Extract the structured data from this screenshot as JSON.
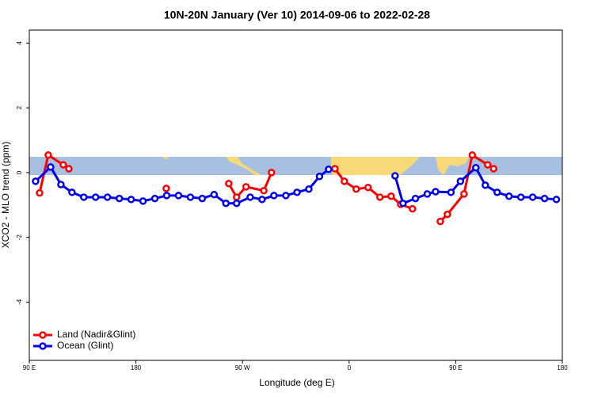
{
  "chart_data": {
    "type": "line",
    "title": "10N-20N January (Ver 10)   2014-09-06 to 2022-02-28",
    "xlabel": "Longitude (deg E)",
    "ylabel": "XCO2 - MLO trend (ppm)",
    "xlim": [
      90,
      540
    ],
    "ylim": [
      -5.8,
      4.4
    ],
    "xticks": [
      {
        "value": 90,
        "label": "90 E"
      },
      180,
      {
        "value": 270,
        "label": "90 W"
      },
      {
        "value": 360,
        "label": "0"
      },
      {
        "value": 450,
        "label": "90 E"
      },
      180
    ],
    "yticks": [
      -4,
      -2,
      0,
      2,
      4
    ],
    "legend": "bottom-left",
    "series": [
      {
        "name": "Land (Nadir&Glint)",
        "color": "#ff0000",
        "x": [
          98.7,
          106,
          118.7,
          123.4,
          null,
          205.6,
          null,
          258.4,
          265,
          273,
          288,
          294.5,
          null,
          348,
          356,
          366,
          376,
          386,
          395.5,
          403.5,
          413.5,
          null,
          437,
          443,
          457,
          464,
          477,
          482
        ],
        "values": [
          -0.63,
          0.54,
          0.24,
          0.12,
          null,
          -0.49,
          null,
          -0.34,
          -0.76,
          -0.44,
          -0.56,
          0.0,
          null,
          0.12,
          -0.27,
          -0.51,
          -0.46,
          -0.76,
          -0.73,
          -0.98,
          -1.12,
          null,
          -1.51,
          -1.29,
          -0.66,
          0.54,
          0.24,
          0.12
        ]
      },
      {
        "name": "Ocean (Glint)",
        "color": "#0000ee",
        "x": [
          95.3,
          108,
          116.7,
          126,
          136,
          146,
          156,
          166,
          176,
          186,
          196,
          206,
          216,
          226,
          236,
          246,
          256,
          265,
          276.5,
          286.5,
          296.5,
          306.6,
          316,
          326,
          335,
          342.7,
          null,
          398.8,
          405.5,
          416,
          426,
          433,
          446,
          454,
          467,
          475,
          485,
          495,
          505,
          515,
          525,
          535
        ],
        "values": [
          -0.27,
          0.17,
          -0.37,
          -0.61,
          -0.76,
          -0.76,
          -0.76,
          -0.8,
          -0.83,
          -0.88,
          -0.8,
          -0.71,
          -0.71,
          -0.76,
          -0.8,
          -0.68,
          -0.95,
          -0.95,
          -0.76,
          -0.83,
          -0.71,
          -0.71,
          -0.61,
          -0.51,
          -0.12,
          0.1,
          null,
          -0.1,
          -0.95,
          -0.8,
          -0.66,
          -0.59,
          -0.61,
          -0.27,
          0.15,
          -0.39,
          -0.61,
          -0.73,
          -0.76,
          -0.76,
          -0.8,
          -0.83
        ]
      }
    ]
  }
}
